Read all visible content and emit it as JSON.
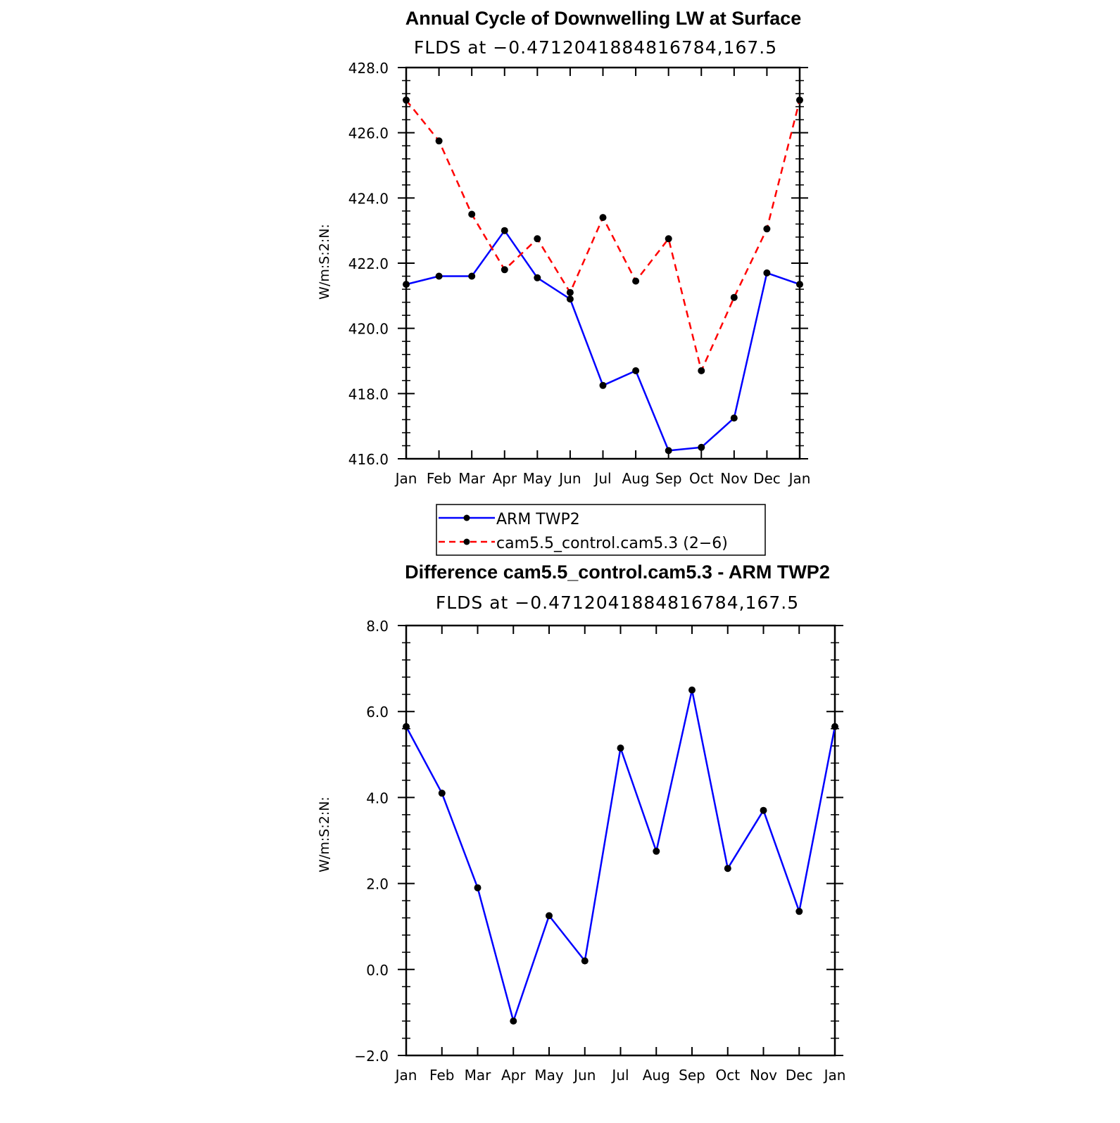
{
  "chart_data": [
    {
      "type": "line",
      "title": "Annual Cycle of Downwelling LW at Surface",
      "subtitle": "FLDS at −0.4712041884816784,167.5",
      "xlabel": "",
      "ylabel": "W/m:S:2:N:",
      "categories": [
        "Jan",
        "Feb",
        "Mar",
        "Apr",
        "May",
        "Jun",
        "Jul",
        "Aug",
        "Sep",
        "Oct",
        "Nov",
        "Dec",
        "Jan"
      ],
      "ylim": [
        416,
        428
      ],
      "yticks": [
        416,
        418,
        420,
        422,
        424,
        426,
        428
      ],
      "ytick_labels": [
        "416.0",
        "418.0",
        "420.0",
        "422.0",
        "424.0",
        "426.0",
        "428.0"
      ],
      "grid": false,
      "legend_position": "below",
      "series": [
        {
          "name": "ARM TWP2",
          "color": "#0000ff",
          "dash": "solid",
          "values": [
            421.35,
            421.6,
            421.6,
            423.0,
            421.55,
            420.9,
            418.25,
            418.7,
            416.25,
            416.35,
            417.25,
            421.7,
            421.35
          ]
        },
        {
          "name": "cam5.5_control.cam5.3 (2−6)",
          "color": "#ff0000",
          "dash": "dashed",
          "values": [
            427.0,
            425.75,
            423.5,
            421.8,
            422.75,
            421.1,
            423.4,
            421.45,
            422.75,
            418.7,
            420.95,
            423.05,
            427.0
          ]
        }
      ]
    },
    {
      "type": "line",
      "title": "Difference cam5.5_control.cam5.3 - ARM TWP2",
      "subtitle": "FLDS at −0.4712041884816784,167.5",
      "xlabel": "",
      "ylabel": "W/m:S:2:N:",
      "categories": [
        "Jan",
        "Feb",
        "Mar",
        "Apr",
        "May",
        "Jun",
        "Jul",
        "Aug",
        "Sep",
        "Oct",
        "Nov",
        "Dec",
        "Jan"
      ],
      "ylim": [
        -2,
        8
      ],
      "yticks": [
        -2,
        0,
        2,
        4,
        6,
        8
      ],
      "ytick_labels": [
        "−2.0",
        "0.0",
        "2.0",
        "4.0",
        "6.0",
        "8.0"
      ],
      "grid": false,
      "series": [
        {
          "color": "#0000ff",
          "dash": "solid",
          "values": [
            5.65,
            4.1,
            1.9,
            -1.2,
            1.25,
            0.2,
            5.15,
            2.75,
            6.5,
            2.35,
            3.7,
            1.35,
            5.65
          ]
        }
      ]
    }
  ]
}
